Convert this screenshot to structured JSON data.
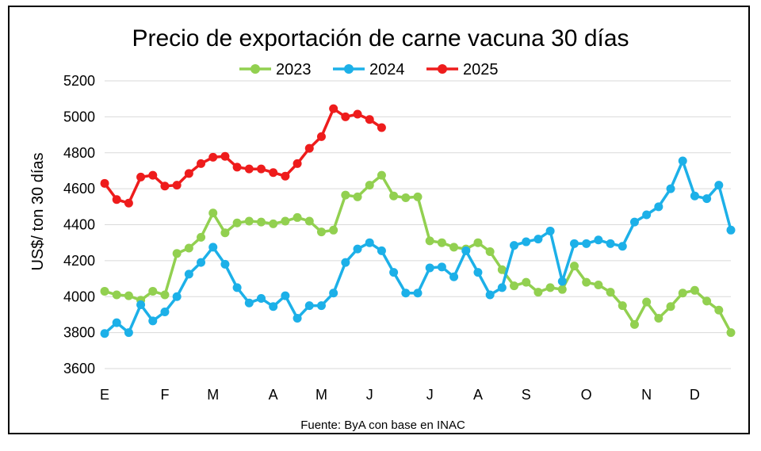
{
  "chart_data": {
    "type": "line",
    "title": "Precio de exportación de carne vacuna 30 días",
    "ylabel": "US$/ ton 30 días",
    "xlabel": "",
    "source": "Fuente: ByA con base en INAC",
    "ylim": [
      3600,
      5200
    ],
    "yticks": [
      3600,
      3800,
      4000,
      4200,
      4400,
      4600,
      4800,
      5000,
      5200
    ],
    "grid": true,
    "legend_position": "top-center",
    "week_count": 52,
    "month_labels": [
      {
        "label": "E",
        "week": 0
      },
      {
        "label": "F",
        "week": 5
      },
      {
        "label": "M",
        "week": 9
      },
      {
        "label": "A",
        "week": 14
      },
      {
        "label": "M",
        "week": 18
      },
      {
        "label": "J",
        "week": 22
      },
      {
        "label": "J",
        "week": 27
      },
      {
        "label": "A",
        "week": 31
      },
      {
        "label": "S",
        "week": 35
      },
      {
        "label": "O",
        "week": 40
      },
      {
        "label": "N",
        "week": 45
      },
      {
        "label": "D",
        "week": 49
      }
    ],
    "series": [
      {
        "name": "2023",
        "color": "#92d050",
        "values": [
          4030,
          4010,
          4005,
          3980,
          4030,
          4010,
          4240,
          4270,
          4330,
          4465,
          4355,
          4410,
          4420,
          4415,
          4405,
          4420,
          4440,
          4420,
          4360,
          4370,
          4565,
          4555,
          4620,
          4675,
          4560,
          4550,
          4555,
          4310,
          4300,
          4275,
          4265,
          4300,
          4250,
          4150,
          4060,
          4080,
          4025,
          4050,
          4040,
          4170,
          4080,
          4065,
          4025,
          3950,
          3845,
          3970,
          3880,
          3945,
          4020,
          4035,
          3975,
          3925,
          3800
        ]
      },
      {
        "name": "2024",
        "color": "#1cb0e8",
        "values": [
          3795,
          3855,
          3800,
          3955,
          3865,
          3915,
          4000,
          4125,
          4190,
          4275,
          4180,
          4050,
          3965,
          3990,
          3945,
          4005,
          3880,
          3950,
          3950,
          4020,
          4190,
          4265,
          4300,
          4255,
          4135,
          4020,
          4020,
          4160,
          4165,
          4110,
          4255,
          4135,
          4010,
          4050,
          4285,
          4305,
          4320,
          4365,
          4085,
          4295,
          4295,
          4315,
          4295,
          4280,
          4415,
          4455,
          4500,
          4600,
          4755,
          4560,
          4545,
          4620,
          4370
        ]
      },
      {
        "name": "2025",
        "color": "#ee1c1c",
        "values": [
          4630,
          4540,
          4520,
          4665,
          4675,
          4615,
          4620,
          4685,
          4740,
          4775,
          4780,
          4720,
          4710,
          4710,
          4690,
          4670,
          4740,
          4825,
          4890,
          5045,
          5000,
          5015,
          4985,
          4940
        ]
      }
    ]
  }
}
